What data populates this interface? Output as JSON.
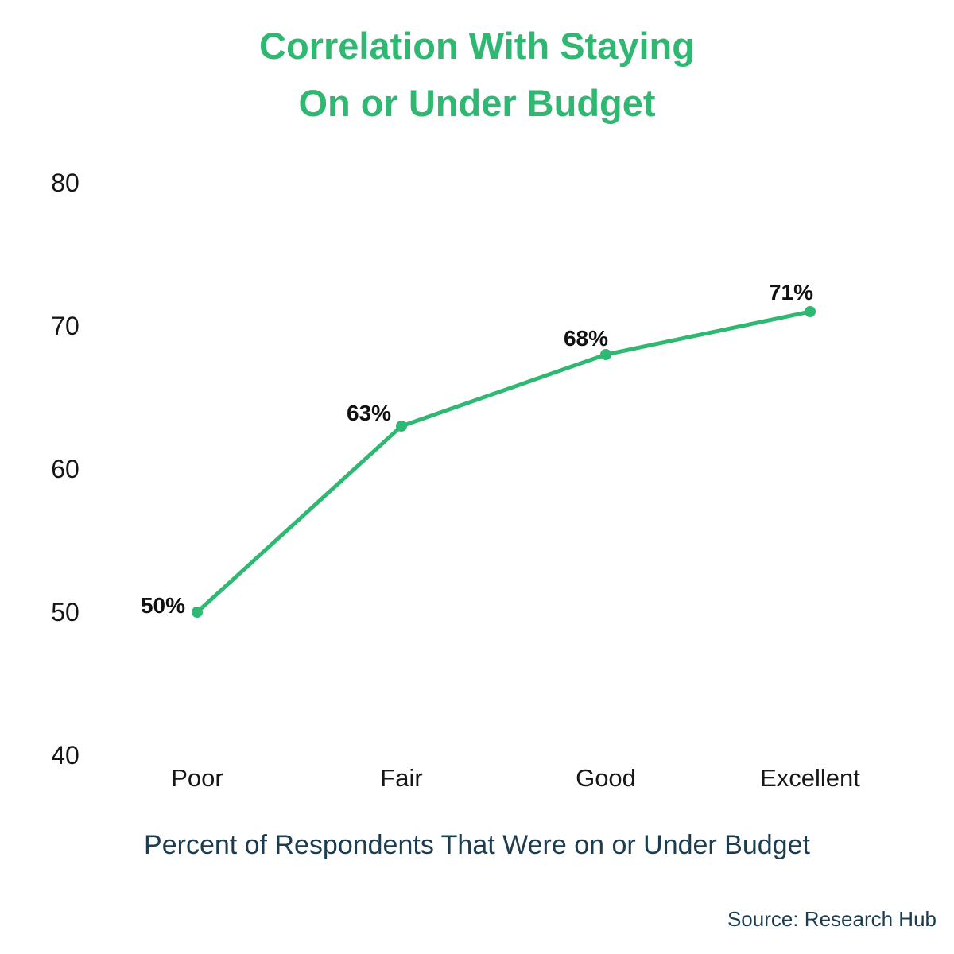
{
  "title": {
    "lines": [
      "Correlation With Staying",
      "On or Under Budget"
    ]
  },
  "chart_data": {
    "type": "line",
    "categories": [
      "Poor",
      "Fair",
      "Good",
      "Excellent"
    ],
    "values": [
      50,
      63,
      68,
      71
    ],
    "point_labels": [
      "50%",
      "63%",
      "68%",
      "71%"
    ],
    "title": "Correlation With Staying On or Under Budget",
    "xlabel": "Percent of Respondents That Were on or Under Budget",
    "ylabel": "",
    "y_ticks": [
      80,
      70,
      60,
      50,
      40
    ],
    "ylim": [
      40,
      80
    ],
    "grid": false,
    "legend": false,
    "axis_lines": false,
    "marker": "circle"
  },
  "caption": "Percent of Respondents That Were on or Under Budget",
  "source": "Source: Research Hub",
  "colors": {
    "accent_green": "#2eb872",
    "label_black": "#111111",
    "tick_black": "#161616",
    "caption_navy": "#1c3d50",
    "background": "#ffffff"
  }
}
